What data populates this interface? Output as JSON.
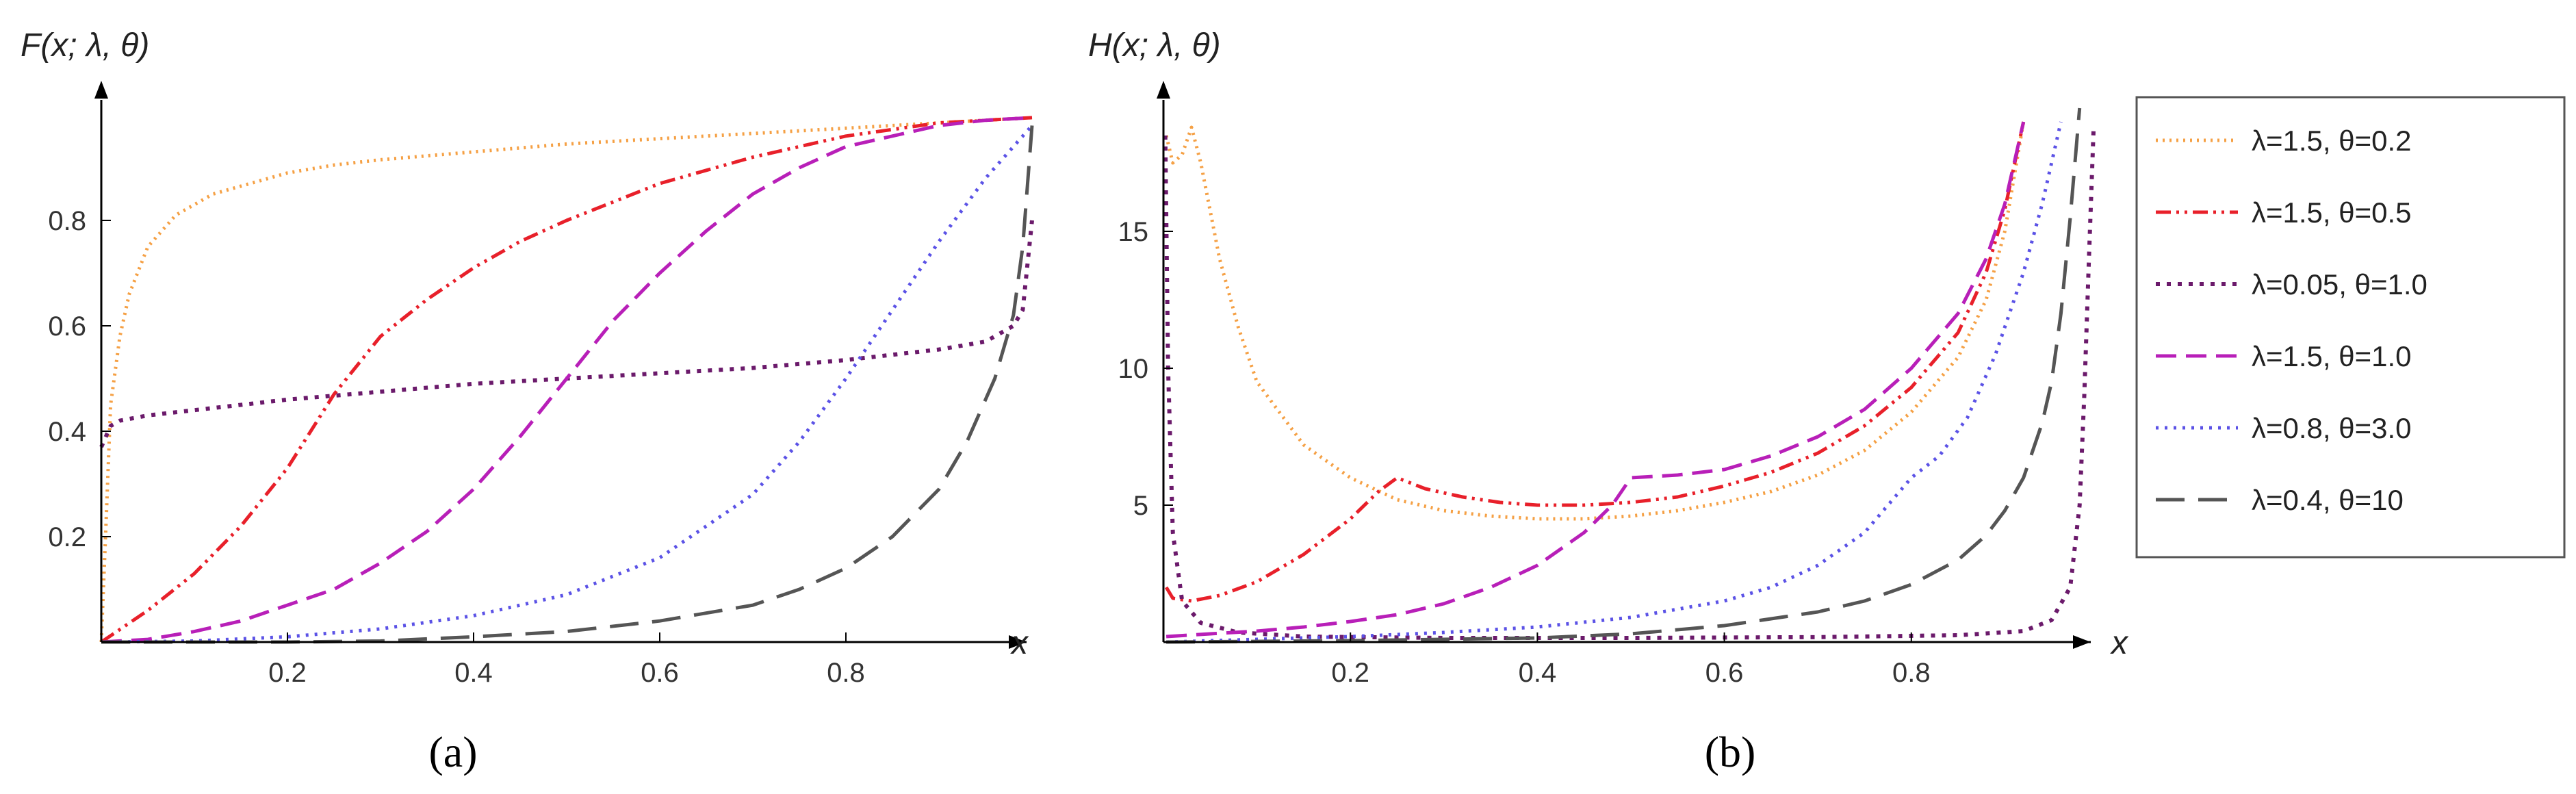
{
  "chart_data": [
    {
      "type": "line",
      "panel_label": "(a)",
      "ylabel": "F(x; λ, θ)",
      "xlabel": "x",
      "xlim": [
        0,
        1.0
      ],
      "ylim": [
        0,
        1.0
      ],
      "xticks": [
        0.2,
        0.4,
        0.6,
        0.8
      ],
      "yticks": [
        0.2,
        0.4,
        0.6,
        0.8
      ],
      "xtick_labels": [
        "0.2",
        "0.4",
        "0.6",
        "0.8"
      ],
      "ytick_labels": [
        "0.2",
        "0.4",
        "0.6",
        "0.8"
      ],
      "grid": false,
      "series": [
        {
          "name": "λ=1.5, θ=0.2",
          "color": "#f5a044",
          "dash": "3 7",
          "width": 5,
          "x": [
            0,
            0.005,
            0.01,
            0.02,
            0.03,
            0.05,
            0.08,
            0.12,
            0.16,
            0.2,
            0.25,
            0.3,
            0.4,
            0.5,
            0.6,
            0.7,
            0.8,
            0.9,
            1.0
          ],
          "y": [
            0,
            0.22,
            0.45,
            0.58,
            0.66,
            0.75,
            0.81,
            0.85,
            0.87,
            0.89,
            0.905,
            0.915,
            0.93,
            0.945,
            0.955,
            0.965,
            0.975,
            0.985,
            0.995
          ]
        },
        {
          "name": "λ=1.5, θ=0.5",
          "color": "#e8202a",
          "dash": "22 8 4 8 4 8",
          "width": 5,
          "x": [
            0,
            0.05,
            0.1,
            0.15,
            0.2,
            0.25,
            0.3,
            0.35,
            0.4,
            0.45,
            0.5,
            0.6,
            0.7,
            0.8,
            0.9,
            1.0
          ],
          "y": [
            0,
            0.06,
            0.13,
            0.22,
            0.33,
            0.47,
            0.58,
            0.65,
            0.71,
            0.76,
            0.8,
            0.87,
            0.92,
            0.96,
            0.985,
            0.995
          ]
        },
        {
          "name": "λ=0.05, θ=1.0",
          "color": "#6b1a6b",
          "dash": "6 10",
          "width": 6,
          "x": [
            0,
            0.005,
            0.01,
            0.02,
            0.05,
            0.1,
            0.2,
            0.3,
            0.4,
            0.5,
            0.6,
            0.7,
            0.8,
            0.9,
            0.95,
            0.98,
            0.99,
            1.0
          ],
          "y": [
            0.37,
            0.39,
            0.41,
            0.42,
            0.43,
            0.44,
            0.46,
            0.475,
            0.49,
            0.5,
            0.51,
            0.52,
            0.535,
            0.555,
            0.57,
            0.6,
            0.63,
            0.8
          ]
        },
        {
          "name": "λ=1.5, θ=1.0",
          "color": "#b81fb8",
          "dash": "30 14",
          "width": 5,
          "x": [
            0,
            0.05,
            0.1,
            0.15,
            0.2,
            0.25,
            0.3,
            0.35,
            0.4,
            0.45,
            0.5,
            0.55,
            0.6,
            0.65,
            0.7,
            0.75,
            0.8,
            0.85,
            0.9,
            0.95,
            1.0
          ],
          "y": [
            0,
            0.005,
            0.02,
            0.04,
            0.07,
            0.1,
            0.15,
            0.21,
            0.29,
            0.39,
            0.5,
            0.61,
            0.7,
            0.78,
            0.85,
            0.9,
            0.94,
            0.96,
            0.98,
            0.99,
            0.995
          ]
        },
        {
          "name": "λ=0.8, θ=3.0",
          "color": "#5b52e6",
          "dash": "4 9",
          "width": 5,
          "x": [
            0,
            0.1,
            0.2,
            0.3,
            0.4,
            0.5,
            0.6,
            0.7,
            0.75,
            0.8,
            0.85,
            0.9,
            0.95,
            1.0
          ],
          "y": [
            0,
            0.002,
            0.01,
            0.025,
            0.05,
            0.09,
            0.16,
            0.28,
            0.38,
            0.5,
            0.63,
            0.76,
            0.88,
            0.98
          ]
        },
        {
          "name": "λ=0.4, θ=10",
          "color": "#555555",
          "dash": "42 20",
          "width": 5,
          "x": [
            0,
            0.2,
            0.3,
            0.4,
            0.5,
            0.6,
            0.7,
            0.75,
            0.8,
            0.85,
            0.9,
            0.93,
            0.96,
            0.98,
            0.99,
            1.0
          ],
          "y": [
            0,
            0,
            0.002,
            0.01,
            0.02,
            0.04,
            0.07,
            0.1,
            0.14,
            0.2,
            0.29,
            0.38,
            0.5,
            0.62,
            0.75,
            0.98
          ]
        }
      ]
    },
    {
      "type": "line",
      "panel_label": "(b)",
      "ylabel": "H(x; λ, θ)",
      "xlabel": "x",
      "xlim": [
        0,
        1.0
      ],
      "ylim": [
        0,
        20
      ],
      "xticks": [
        0.2,
        0.4,
        0.6,
        0.8
      ],
      "yticks": [
        5,
        10,
        15
      ],
      "xtick_labels": [
        "0.2",
        "0.4",
        "0.6",
        "0.8"
      ],
      "ytick_labels": [
        "5",
        "10",
        "15"
      ],
      "grid": false,
      "series": [
        {
          "name": "λ=1.5, θ=0.2",
          "color": "#f5a044",
          "dash": "3 7",
          "width": 5,
          "x": [
            0.003,
            0.01,
            0.02,
            0.03,
            0.04,
            0.06,
            0.08,
            0.1,
            0.15,
            0.2,
            0.25,
            0.3,
            0.35,
            0.4,
            0.45,
            0.5,
            0.55,
            0.6,
            0.65,
            0.7,
            0.75,
            0.8,
            0.85,
            0.88,
            0.9,
            0.92
          ],
          "y": [
            18.5,
            17.5,
            17.8,
            18.8,
            17.5,
            14.0,
            11.5,
            9.5,
            7.2,
            6.0,
            5.2,
            4.8,
            4.6,
            4.5,
            4.5,
            4.6,
            4.8,
            5.1,
            5.5,
            6.1,
            7.0,
            8.4,
            10.4,
            12.5,
            15.0,
            19.0
          ]
        },
        {
          "name": "λ=1.5, θ=0.5",
          "color": "#e8202a",
          "dash": "22 8 4 8 4 8",
          "width": 5,
          "x": [
            0.003,
            0.01,
            0.03,
            0.06,
            0.1,
            0.15,
            0.2,
            0.23,
            0.25,
            0.28,
            0.32,
            0.36,
            0.4,
            0.45,
            0.5,
            0.55,
            0.6,
            0.65,
            0.7,
            0.75,
            0.8,
            0.85,
            0.88,
            0.9,
            0.92
          ],
          "y": [
            2.0,
            1.6,
            1.5,
            1.7,
            2.2,
            3.2,
            4.5,
            5.5,
            6.0,
            5.6,
            5.3,
            5.1,
            5.0,
            5.0,
            5.1,
            5.3,
            5.7,
            6.2,
            6.9,
            7.9,
            9.3,
            11.3,
            13.5,
            15.8,
            19.0
          ]
        },
        {
          "name": "λ=0.05, θ=1.0",
          "color": "#6b1a6b",
          "dash": "6 10",
          "width": 6,
          "x": [
            0.002,
            0.005,
            0.01,
            0.02,
            0.04,
            0.08,
            0.15,
            0.3,
            0.5,
            0.7,
            0.85,
            0.92,
            0.95,
            0.97,
            0.98,
            0.985,
            0.99,
            0.995
          ],
          "y": [
            18.5,
            10.0,
            4.0,
            1.5,
            0.7,
            0.35,
            0.2,
            0.15,
            0.15,
            0.18,
            0.25,
            0.4,
            0.8,
            2.0,
            5.0,
            9.0,
            14.0,
            18.8
          ]
        },
        {
          "name": "λ=1.5, θ=1.0",
          "color": "#b81fb8",
          "dash": "30 14",
          "width": 5,
          "x": [
            0.003,
            0.05,
            0.1,
            0.15,
            0.2,
            0.25,
            0.3,
            0.35,
            0.4,
            0.45,
            0.48,
            0.5,
            0.55,
            0.6,
            0.65,
            0.7,
            0.75,
            0.8,
            0.85,
            0.88,
            0.9,
            0.92
          ],
          "y": [
            0.2,
            0.3,
            0.4,
            0.55,
            0.75,
            1.0,
            1.4,
            2.0,
            2.8,
            4.0,
            5.0,
            6.0,
            6.1,
            6.3,
            6.8,
            7.5,
            8.5,
            10.0,
            12.0,
            14.0,
            16.0,
            19.0
          ]
        },
        {
          "name": "λ=0.8, θ=3.0",
          "color": "#5b52e6",
          "dash": "4 9",
          "width": 5,
          "x": [
            0.003,
            0.1,
            0.2,
            0.3,
            0.4,
            0.5,
            0.6,
            0.65,
            0.7,
            0.75,
            0.78,
            0.8,
            0.83,
            0.86,
            0.89,
            0.92,
            0.94,
            0.96
          ],
          "y": [
            0,
            0.1,
            0.2,
            0.35,
            0.55,
            0.9,
            1.5,
            2.0,
            2.8,
            4.0,
            5.2,
            6.0,
            6.8,
            8.2,
            10.5,
            13.5,
            16.0,
            19.0
          ]
        },
        {
          "name": "λ=0.4, θ=10",
          "color": "#555555",
          "dash": "42 20",
          "width": 5,
          "x": [
            0.003,
            0.2,
            0.4,
            0.5,
            0.6,
            0.7,
            0.75,
            0.8,
            0.85,
            0.88,
            0.9,
            0.92,
            0.94,
            0.95,
            0.96,
            0.97,
            0.98
          ],
          "y": [
            0,
            0.05,
            0.15,
            0.3,
            0.6,
            1.1,
            1.5,
            2.1,
            3.0,
            3.9,
            4.8,
            6.0,
            8.0,
            9.5,
            12.0,
            15.5,
            19.5
          ]
        }
      ]
    }
  ]
}
